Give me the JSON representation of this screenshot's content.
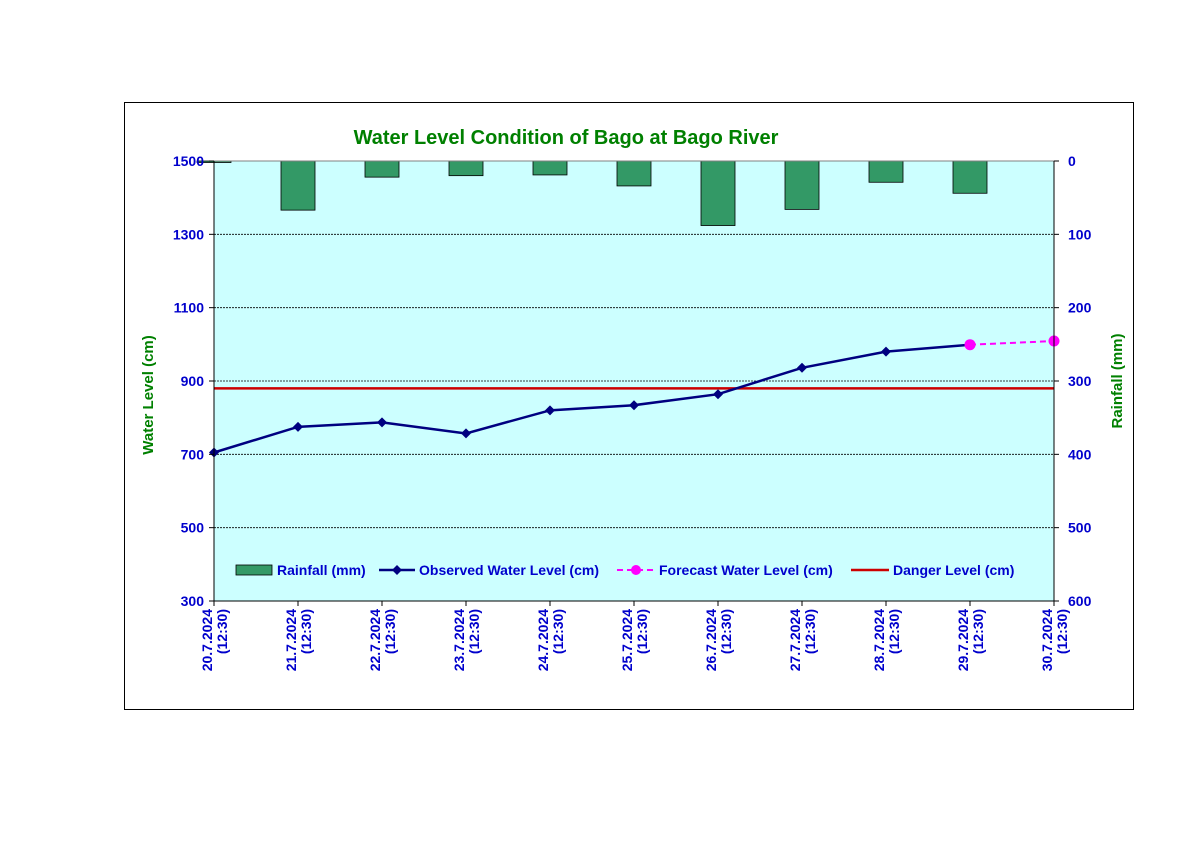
{
  "colors": {
    "plot_bg": "#ccffff",
    "title": "#008000",
    "axis_label": "#008000",
    "tick": "#0000cc",
    "rain_bar": "#339966",
    "observed": "#000080",
    "forecast": "#ff00ff",
    "danger": "#cc0000"
  },
  "chart_data": {
    "type": "line",
    "title": "Water Level Condition of Bago at Bago River",
    "ylabel": "Water Level (cm)",
    "y2label": "Rainfall (mm)",
    "ylim": [
      300,
      1500
    ],
    "yticks": [
      300,
      500,
      700,
      900,
      1100,
      1300,
      1500
    ],
    "y2lim": [
      0,
      600
    ],
    "y2ticks": [
      0,
      100,
      200,
      300,
      400,
      500,
      600
    ],
    "y2_inverted": true,
    "grid": true,
    "legend_position": "bottom",
    "categories": [
      [
        "20.7.2024",
        "(12:30)"
      ],
      [
        "21.7.2024",
        "(12:30)"
      ],
      [
        "22.7.2024",
        "(12:30)"
      ],
      [
        "23.7.2024",
        "(12:30)"
      ],
      [
        "24.7.2024",
        "(12:30)"
      ],
      [
        "25.7.2024",
        "(12:30)"
      ],
      [
        "26.7.2024",
        "(12:30)"
      ],
      [
        "27.7.2024",
        "(12:30)"
      ],
      [
        "28.7.2024",
        "(12:30)"
      ],
      [
        "29.7.2024",
        "(12:30)"
      ],
      [
        "30.7.2024",
        "(12:30)"
      ]
    ],
    "series": [
      {
        "name": "Rainfall (mm)",
        "kind": "bar",
        "axis": "y2",
        "values": [
          2,
          67,
          22,
          20,
          19,
          34,
          88,
          66,
          29,
          44,
          null
        ]
      },
      {
        "name": "Observed Water Level (cm)",
        "kind": "line",
        "axis": "y",
        "values": [
          705,
          775,
          787,
          757,
          820,
          834,
          864,
          936,
          980,
          999,
          null
        ]
      },
      {
        "name": "Forecast Water Level (cm)",
        "kind": "line-dashed",
        "axis": "y",
        "values": [
          null,
          null,
          null,
          null,
          null,
          null,
          null,
          null,
          null,
          999,
          1009
        ]
      },
      {
        "name": "Danger Level (cm)",
        "kind": "hline",
        "axis": "y",
        "value": 880
      }
    ]
  }
}
